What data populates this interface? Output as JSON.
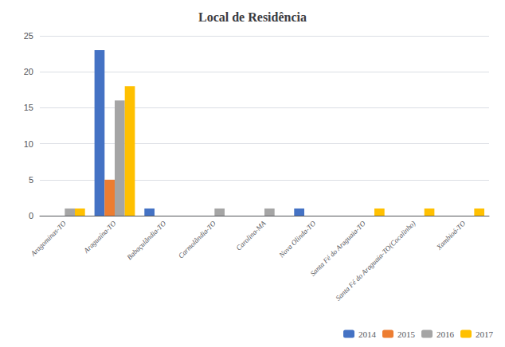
{
  "chart_data": {
    "type": "bar",
    "title": "Local de Residência",
    "categories": [
      "Aragominas-TO",
      "Araguaína-TO",
      "Babaçulândia-TO",
      "Carmolândia-TO",
      "Carolina-MA",
      "Nova Olinda-TO",
      "Santa Fé do Araguaia-TO",
      "Santa Fé do Araguaia-TO(Cocalinho)",
      "Xambioá-TO"
    ],
    "series": [
      {
        "name": "2014",
        "color": "#4472c4",
        "values": [
          0,
          23,
          1,
          0,
          0,
          1,
          0,
          0,
          0
        ]
      },
      {
        "name": "2015",
        "color": "#ed7d31",
        "values": [
          0,
          5,
          0,
          0,
          0,
          0,
          0,
          0,
          0
        ]
      },
      {
        "name": "2016",
        "color": "#a5a5a5",
        "values": [
          1,
          16,
          0,
          1,
          1,
          0,
          0,
          0,
          0
        ]
      },
      {
        "name": "2017",
        "color": "#ffc000",
        "values": [
          1,
          18,
          0,
          0,
          0,
          0,
          1,
          1,
          1
        ]
      }
    ],
    "ylim": [
      0,
      25
    ],
    "yticks": [
      0,
      5,
      10,
      15,
      20,
      25
    ],
    "grid": true,
    "legend": "lower right"
  }
}
